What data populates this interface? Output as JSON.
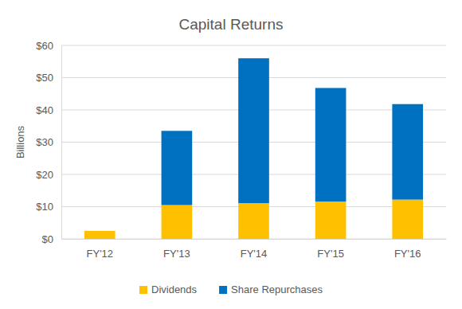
{
  "chart_data": {
    "type": "bar",
    "title": "Capital Returns",
    "y_label": "Billions",
    "categories": [
      "FY'12",
      "FY'13",
      "FY'14",
      "FY'15",
      "FY'16"
    ],
    "series": [
      {
        "name": "Dividends",
        "color": "#ffc000",
        "values": [
          2.5,
          10.5,
          11.1,
          11.6,
          12.2
        ]
      },
      {
        "name": "Share Repurchases",
        "color": "#0070c0",
        "values": [
          0,
          23.0,
          44.9,
          35.2,
          29.6
        ]
      }
    ],
    "stacked": true,
    "ylim": [
      0,
      60
    ],
    "yticks": [
      {
        "value": 0,
        "label": "$0"
      },
      {
        "value": 10,
        "label": "$10"
      },
      {
        "value": 20,
        "label": "$20"
      },
      {
        "value": 30,
        "label": "$30"
      },
      {
        "value": 40,
        "label": "$40"
      },
      {
        "value": 50,
        "label": "$50"
      },
      {
        "value": 60,
        "label": "$60"
      }
    ],
    "grid": true,
    "legend": "bottom"
  }
}
